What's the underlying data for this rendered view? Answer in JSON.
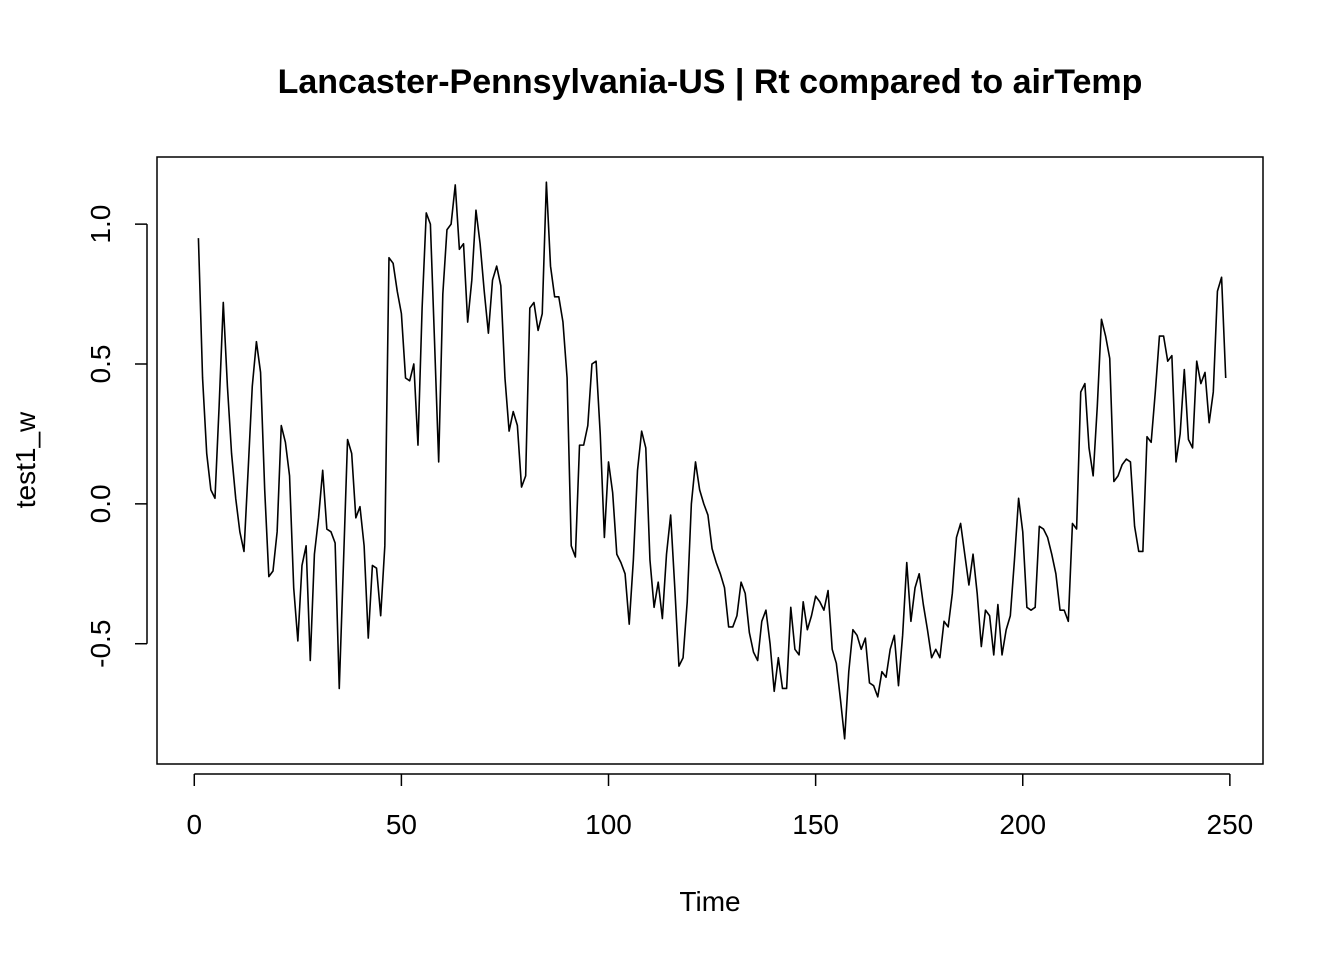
{
  "chart_data": {
    "type": "line",
    "title": "Lancaster-Pennsylvania-US | Rt compared to airTemp",
    "xlabel": "Time",
    "ylabel": "test1_w",
    "xlim": [
      -9,
      258
    ],
    "ylim": [
      -0.93,
      1.24
    ],
    "x_ticks": [
      0,
      50,
      100,
      150,
      200,
      250
    ],
    "x_tick_labels": [
      "0",
      "50",
      "100",
      "150",
      "200",
      "250"
    ],
    "y_ticks": [
      -0.5,
      0.0,
      0.5,
      1.0
    ],
    "y_tick_labels": [
      "-0.5",
      "0.0",
      "0.5",
      "1.0"
    ],
    "grid": false,
    "line_color": "#000000",
    "x_start": 1,
    "x_step": 1,
    "series": [
      {
        "values": [
          0.95,
          0.45,
          0.18,
          0.05,
          0.02,
          0.35,
          0.72,
          0.42,
          0.18,
          0.02,
          -0.1,
          -0.17,
          0.12,
          0.42,
          0.58,
          0.47,
          0.05,
          -0.26,
          -0.24,
          -0.1,
          0.28,
          0.22,
          0.1,
          -0.3,
          -0.49,
          -0.22,
          -0.15,
          -0.56,
          -0.18,
          -0.05,
          0.12,
          -0.09,
          -0.1,
          -0.14,
          -0.66,
          -0.22,
          0.23,
          0.18,
          -0.05,
          -0.01,
          -0.15,
          -0.48,
          -0.22,
          -0.23,
          -0.4,
          -0.15,
          0.88,
          0.86,
          0.76,
          0.68,
          0.45,
          0.44,
          0.5,
          0.21,
          0.7,
          1.04,
          1.0,
          0.58,
          0.15,
          0.75,
          0.98,
          1.0,
          1.14,
          0.91,
          0.93,
          0.65,
          0.8,
          1.05,
          0.93,
          0.76,
          0.61,
          0.8,
          0.85,
          0.78,
          0.45,
          0.26,
          0.33,
          0.28,
          0.06,
          0.1,
          0.7,
          0.72,
          0.62,
          0.68,
          1.15,
          0.85,
          0.74,
          0.74,
          0.65,
          0.45,
          -0.15,
          -0.19,
          0.21,
          0.21,
          0.28,
          0.5,
          0.51,
          0.25,
          -0.12,
          0.15,
          0.04,
          -0.18,
          -0.21,
          -0.25,
          -0.43,
          -0.2,
          0.12,
          0.26,
          0.2,
          -0.2,
          -0.37,
          -0.28,
          -0.41,
          -0.18,
          -0.04,
          -0.3,
          -0.58,
          -0.55,
          -0.35,
          0.0,
          0.15,
          0.05,
          0.0,
          -0.04,
          -0.16,
          -0.21,
          -0.25,
          -0.3,
          -0.44,
          -0.44,
          -0.4,
          -0.28,
          -0.32,
          -0.46,
          -0.53,
          -0.56,
          -0.42,
          -0.38,
          -0.5,
          -0.67,
          -0.55,
          -0.66,
          -0.66,
          -0.37,
          -0.52,
          -0.54,
          -0.35,
          -0.45,
          -0.4,
          -0.33,
          -0.35,
          -0.38,
          -0.31,
          -0.52,
          -0.57,
          -0.7,
          -0.84,
          -0.6,
          -0.45,
          -0.47,
          -0.52,
          -0.48,
          -0.64,
          -0.65,
          -0.69,
          -0.6,
          -0.62,
          -0.52,
          -0.47,
          -0.65,
          -0.47,
          -0.21,
          -0.42,
          -0.3,
          -0.25,
          -0.36,
          -0.45,
          -0.55,
          -0.52,
          -0.55,
          -0.42,
          -0.44,
          -0.32,
          -0.12,
          -0.07,
          -0.18,
          -0.29,
          -0.18,
          -0.32,
          -0.51,
          -0.38,
          -0.4,
          -0.54,
          -0.36,
          -0.54,
          -0.45,
          -0.4,
          -0.2,
          0.02,
          -0.1,
          -0.37,
          -0.38,
          -0.37,
          -0.08,
          -0.09,
          -0.12,
          -0.18,
          -0.25,
          -0.38,
          -0.38,
          -0.42,
          -0.07,
          -0.09,
          0.4,
          0.43,
          0.2,
          0.1,
          0.35,
          0.66,
          0.6,
          0.52,
          0.08,
          0.1,
          0.14,
          0.16,
          0.15,
          -0.08,
          -0.17,
          -0.17,
          0.24,
          0.22,
          0.4,
          0.6,
          0.6,
          0.51,
          0.53,
          0.15,
          0.25,
          0.48,
          0.23,
          0.2,
          0.51,
          0.43,
          0.47,
          0.29,
          0.4,
          0.76,
          0.81,
          0.45
        ]
      }
    ]
  }
}
